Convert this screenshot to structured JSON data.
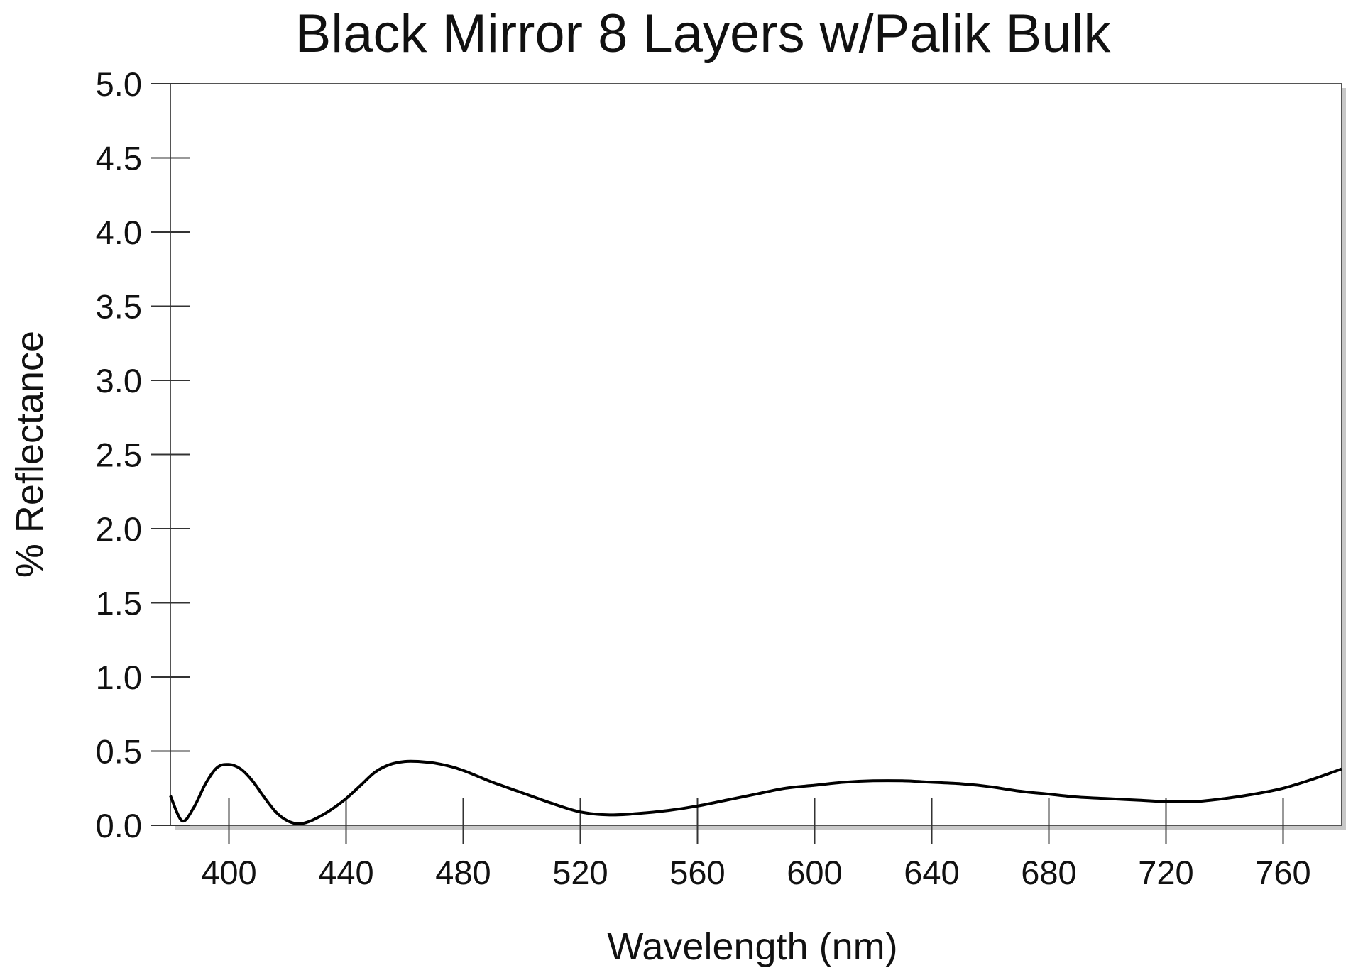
{
  "chart_data": {
    "type": "line",
    "title": "Black Mirror 8 Layers w/Palik Bulk",
    "xlabel": "Wavelength (nm)",
    "ylabel": "% Reflectance",
    "xlim": [
      380,
      780
    ],
    "ylim": [
      0.0,
      5.0
    ],
    "x_ticks": [
      "400",
      "440",
      "480",
      "520",
      "560",
      "600",
      "640",
      "680",
      "720",
      "760"
    ],
    "x_tick_values": [
      400,
      440,
      480,
      520,
      560,
      600,
      640,
      680,
      720,
      760
    ],
    "y_ticks": [
      "0.0",
      "0.5",
      "1.0",
      "1.5",
      "2.0",
      "2.5",
      "3.0",
      "3.5",
      "4.0",
      "4.5",
      "5.0"
    ],
    "y_tick_values": [
      0.0,
      0.5,
      1.0,
      1.5,
      2.0,
      2.5,
      3.0,
      3.5,
      4.0,
      4.5,
      5.0
    ],
    "grid": false,
    "line_color": "#000000",
    "series": [
      {
        "x": [
          380,
          384,
          388,
          392,
          396,
          400,
          404,
          408,
          412,
          416,
          420,
          424,
          428,
          432,
          436,
          440,
          445,
          450,
          455,
          460,
          465,
          470,
          475,
          480,
          485,
          490,
          500,
          510,
          520,
          530,
          540,
          550,
          560,
          570,
          580,
          590,
          600,
          610,
          620,
          630,
          640,
          650,
          660,
          670,
          680,
          690,
          700,
          710,
          720,
          730,
          740,
          750,
          760,
          770,
          780
        ],
        "y": [
          0.2,
          0.03,
          0.12,
          0.28,
          0.39,
          0.41,
          0.38,
          0.3,
          0.19,
          0.09,
          0.03,
          0.01,
          0.03,
          0.07,
          0.12,
          0.18,
          0.27,
          0.36,
          0.41,
          0.43,
          0.43,
          0.42,
          0.4,
          0.37,
          0.33,
          0.29,
          0.22,
          0.15,
          0.09,
          0.07,
          0.08,
          0.1,
          0.13,
          0.17,
          0.21,
          0.25,
          0.27,
          0.29,
          0.3,
          0.3,
          0.29,
          0.28,
          0.26,
          0.23,
          0.21,
          0.19,
          0.18,
          0.17,
          0.16,
          0.16,
          0.18,
          0.21,
          0.25,
          0.31,
          0.38
        ]
      }
    ]
  }
}
